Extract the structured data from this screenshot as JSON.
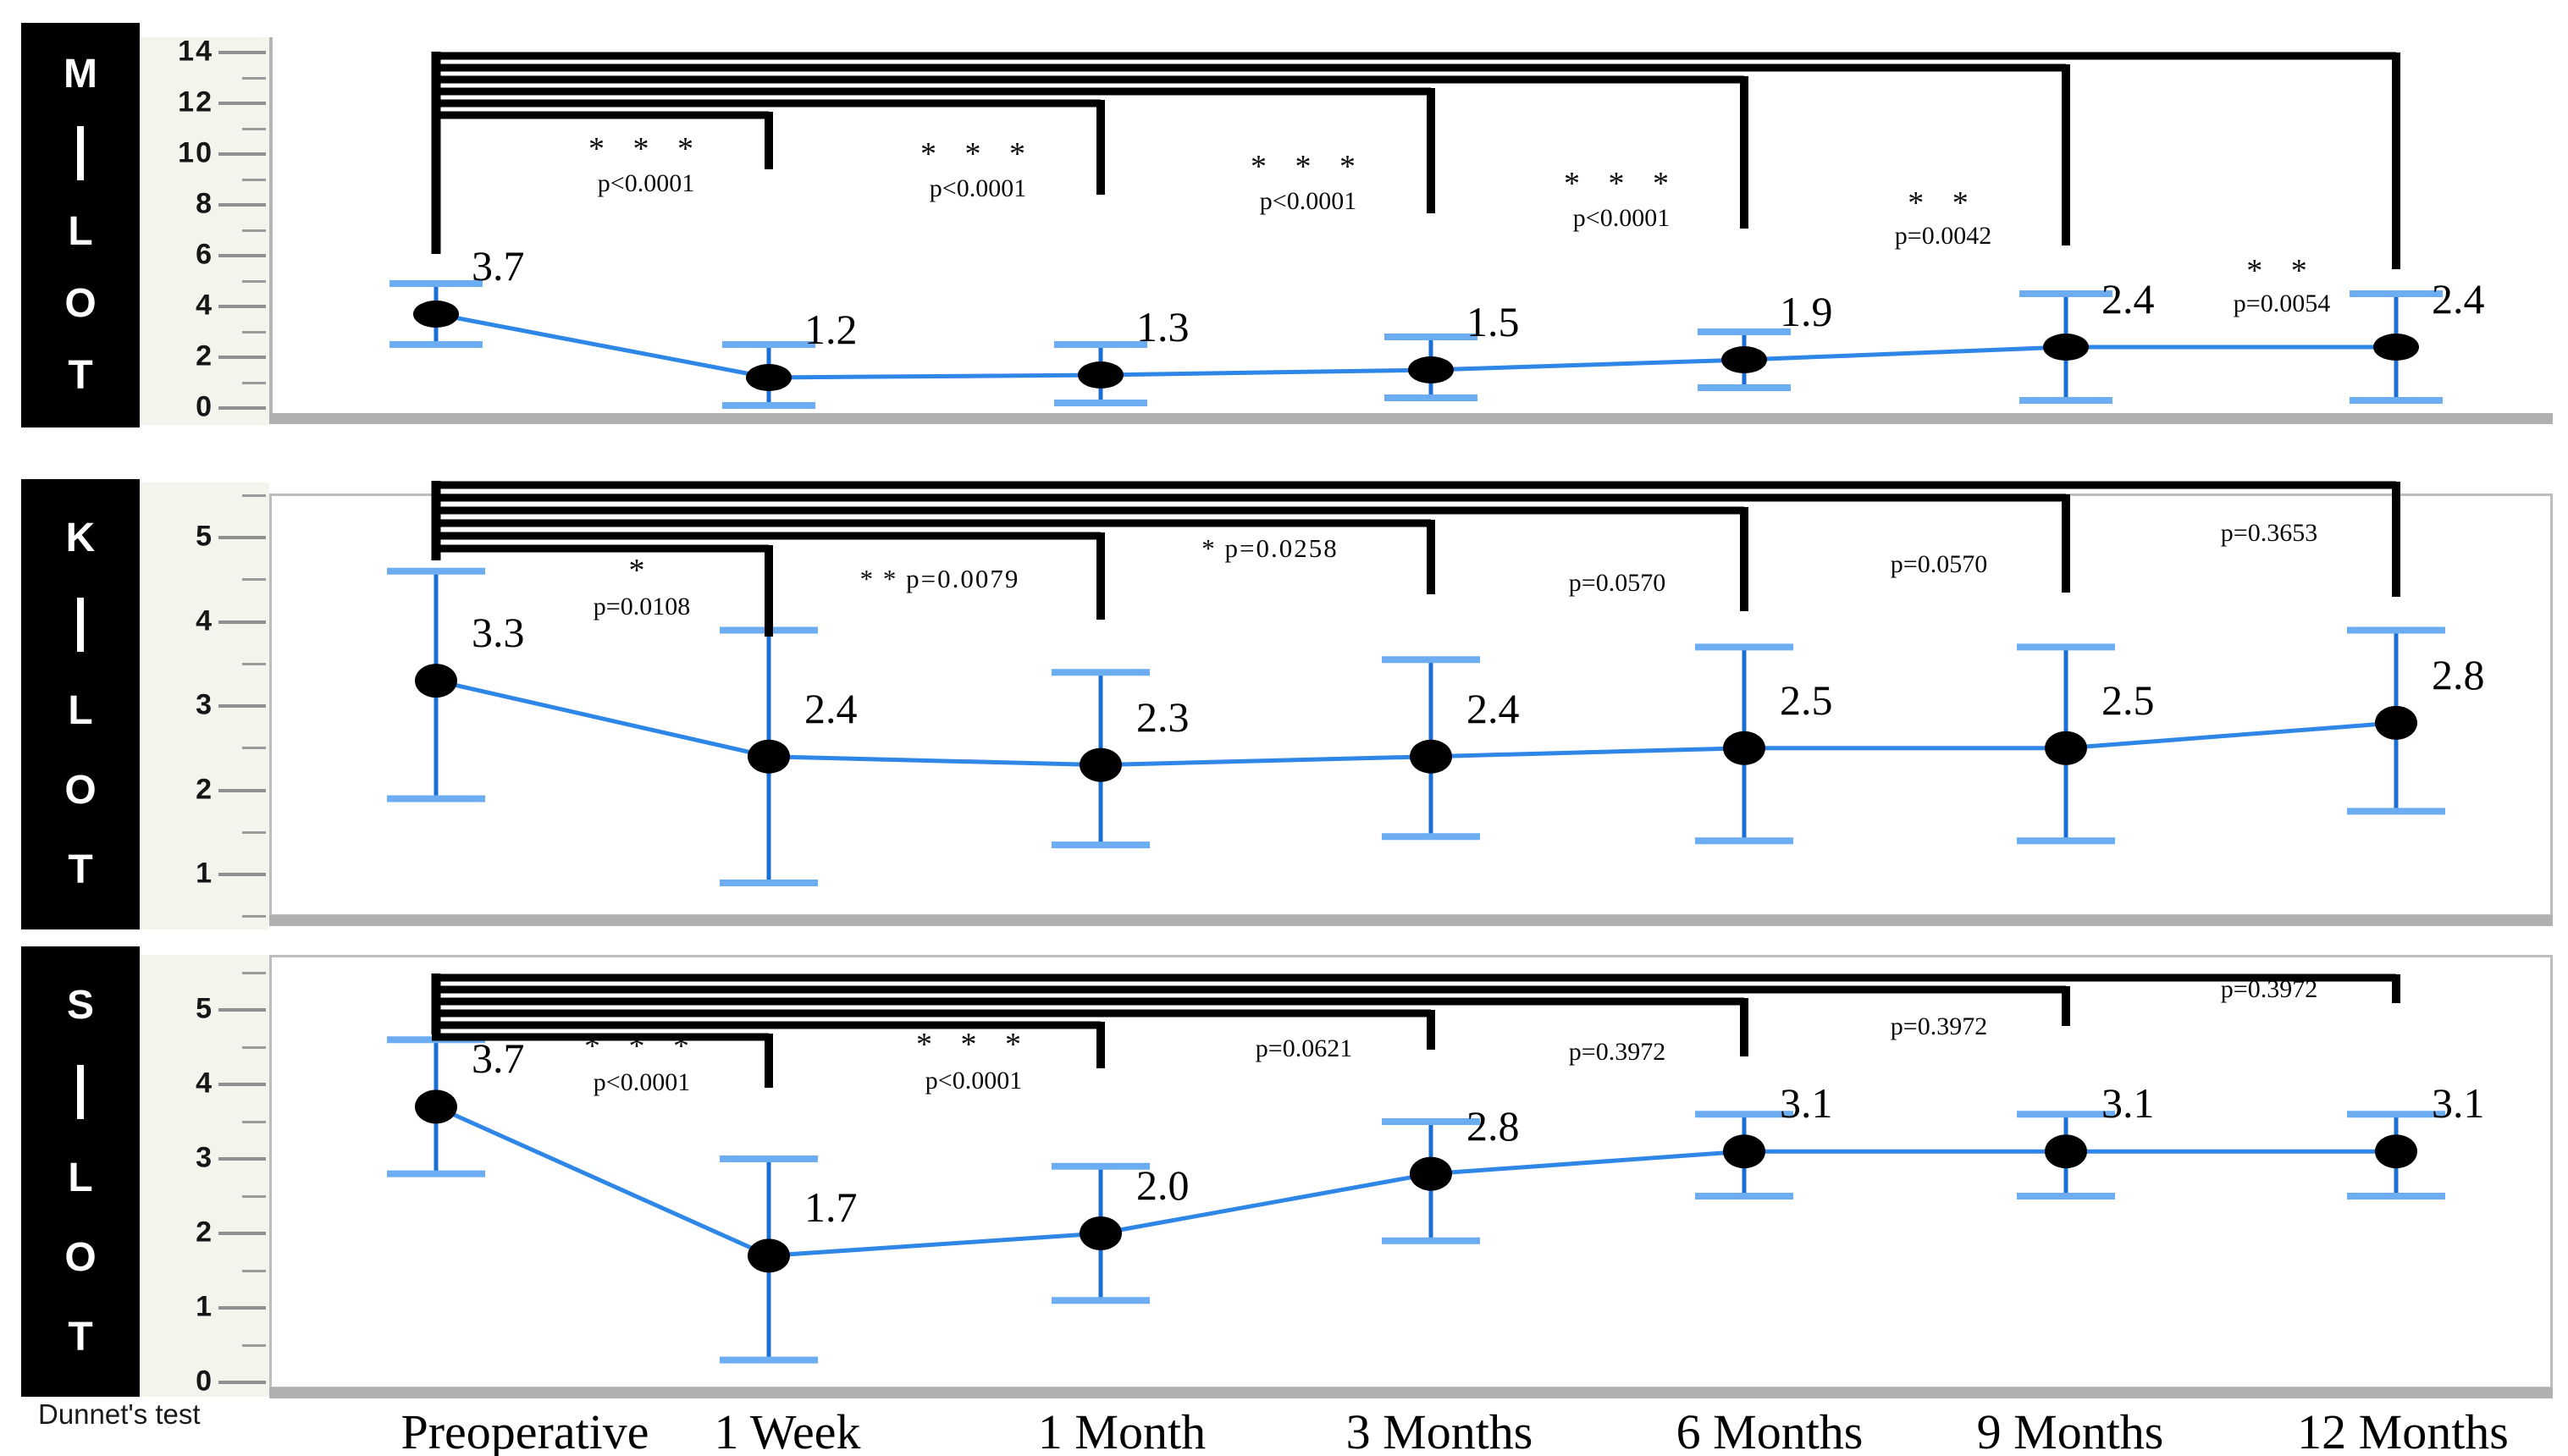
{
  "figure": {
    "test_label": "Dunnet's test"
  },
  "x_axis": {
    "categories": [
      "Preoperative",
      "1 Week",
      "1 Month",
      "3 Months",
      "6 Months",
      "9 Months",
      "12 Months"
    ]
  },
  "colors": {
    "line": "#2e86e6",
    "error_stem": "#1a6fd6",
    "error_cap": "#6cadf2",
    "marker": "#000000",
    "bracket": "#000000",
    "strip_bg": "#f4f3ec",
    "label_box_bg": "#000000",
    "label_box_fg": "#ffffff",
    "axis_gray": "#b0b0b0",
    "border_gray": "#bdbdbd"
  },
  "chart_data": [
    {
      "type": "line",
      "panel_label": "M|LOT",
      "panel_label_chars": [
        "M",
        "|",
        "L",
        "O",
        "T"
      ],
      "categories": [
        "Preoperative",
        "1 Week",
        "1 Month",
        "3 Months",
        "6 Months",
        "9 Months",
        "12 Months"
      ],
      "values": [
        3.7,
        1.2,
        1.3,
        1.5,
        1.9,
        2.4,
        2.4
      ],
      "value_labels": [
        "3.7",
        "1.2",
        "1.3",
        "1.5",
        "1.9",
        "2.4",
        "2.4"
      ],
      "error_low": [
        2.5,
        0.1,
        0.2,
        0.4,
        0.8,
        0.3,
        0.3
      ],
      "error_high": [
        4.9,
        2.5,
        2.5,
        2.8,
        3.0,
        4.5,
        4.5
      ],
      "ylim": [
        0,
        14
      ],
      "yticks": [
        14,
        12,
        10,
        8,
        6,
        4,
        2,
        0
      ],
      "yticks_minor": [
        13,
        11,
        9,
        7,
        5,
        3,
        1
      ],
      "comparisons": [
        {
          "from": "Preoperative",
          "to": "1 Week",
          "stars": "* * *",
          "p_label": "p<0.0001"
        },
        {
          "from": "Preoperative",
          "to": "1 Month",
          "stars": "* * *",
          "p_label": "p<0.0001"
        },
        {
          "from": "Preoperative",
          "to": "3 Months",
          "stars": "* * *",
          "p_label": "p<0.0001"
        },
        {
          "from": "Preoperative",
          "to": "6 Months",
          "stars": "* * *",
          "p_label": "p<0.0001"
        },
        {
          "from": "Preoperative",
          "to": "9 Months",
          "stars": "* *",
          "p_label": "p=0.0042"
        },
        {
          "from": "Preoperative",
          "to": "12 Months",
          "stars": "* *",
          "p_label": "p=0.0054"
        }
      ]
    },
    {
      "type": "line",
      "panel_label": "K|LOT",
      "panel_label_chars": [
        "K",
        "|",
        "L",
        "O",
        "T"
      ],
      "categories": [
        "Preoperative",
        "1 Week",
        "1 Month",
        "3 Months",
        "6 Months",
        "9 Months",
        "12 Months"
      ],
      "values": [
        3.3,
        2.4,
        2.3,
        2.4,
        2.5,
        2.5,
        2.8
      ],
      "value_labels": [
        "3.3",
        "2.4",
        "2.3",
        "2.4",
        "2.5",
        "2.5",
        "2.8"
      ],
      "error_low": [
        1.9,
        0.9,
        1.35,
        1.45,
        1.4,
        1.4,
        1.75
      ],
      "error_high": [
        4.6,
        3.9,
        3.4,
        3.55,
        3.7,
        3.7,
        3.9
      ],
      "ylim": [
        0.5,
        5.5
      ],
      "yticks": [
        5,
        4,
        3,
        2,
        1
      ],
      "yticks_minor": [
        5.5,
        4.5,
        3.5,
        2.5,
        1.5,
        0.5
      ],
      "comparisons": [
        {
          "from": "Preoperative",
          "to": "1 Week",
          "stars": "*",
          "p_label": "p=0.0108"
        },
        {
          "from": "Preoperative",
          "to": "1 Month",
          "stars": "* *",
          "p_label": "p=0.0079"
        },
        {
          "from": "Preoperative",
          "to": "3 Months",
          "stars": "*",
          "p_label": "p=0.0258"
        },
        {
          "from": "Preoperative",
          "to": "6 Months",
          "stars": "",
          "p_label": "p=0.0570"
        },
        {
          "from": "Preoperative",
          "to": "9 Months",
          "stars": "",
          "p_label": "p=0.0570"
        },
        {
          "from": "Preoperative",
          "to": "12 Months",
          "stars": "",
          "p_label": "p=0.3653"
        }
      ]
    },
    {
      "type": "line",
      "panel_label": "S|LOT",
      "panel_label_chars": [
        "S",
        "|",
        "L",
        "O",
        "T"
      ],
      "categories": [
        "Preoperative",
        "1 Week",
        "1 Month",
        "3 Months",
        "6 Months",
        "9 Months",
        "12 Months"
      ],
      "values": [
        3.7,
        1.7,
        2.0,
        2.8,
        3.1,
        3.1,
        3.1
      ],
      "value_labels": [
        "3.7",
        "1.7",
        "2.0",
        "2.8",
        "3.1",
        "3.1",
        "3.1"
      ],
      "error_low": [
        2.8,
        0.3,
        1.1,
        1.9,
        2.5,
        2.5,
        2.5
      ],
      "error_high": [
        4.6,
        3.0,
        2.9,
        3.5,
        3.6,
        3.6,
        3.6
      ],
      "ylim": [
        0,
        5.5
      ],
      "yticks": [
        5,
        4,
        3,
        2,
        1,
        0
      ],
      "yticks_minor": [
        5.5,
        4.5,
        3.5,
        2.5,
        1.5,
        0.5
      ],
      "comparisons": [
        {
          "from": "Preoperative",
          "to": "1 Week",
          "stars": "* * *",
          "p_label": "p<0.0001"
        },
        {
          "from": "Preoperative",
          "to": "1 Month",
          "stars": "* * *",
          "p_label": "p<0.0001"
        },
        {
          "from": "Preoperative",
          "to": "3 Months",
          "stars": "",
          "p_label": "p=0.0621"
        },
        {
          "from": "Preoperative",
          "to": "6 Months",
          "stars": "",
          "p_label": "p=0.3972"
        },
        {
          "from": "Preoperative",
          "to": "9 Months",
          "stars": "",
          "p_label": "p=0.3972"
        },
        {
          "from": "Preoperative",
          "to": "12 Months",
          "stars": "",
          "p_label": "p=0.3972"
        }
      ]
    }
  ]
}
